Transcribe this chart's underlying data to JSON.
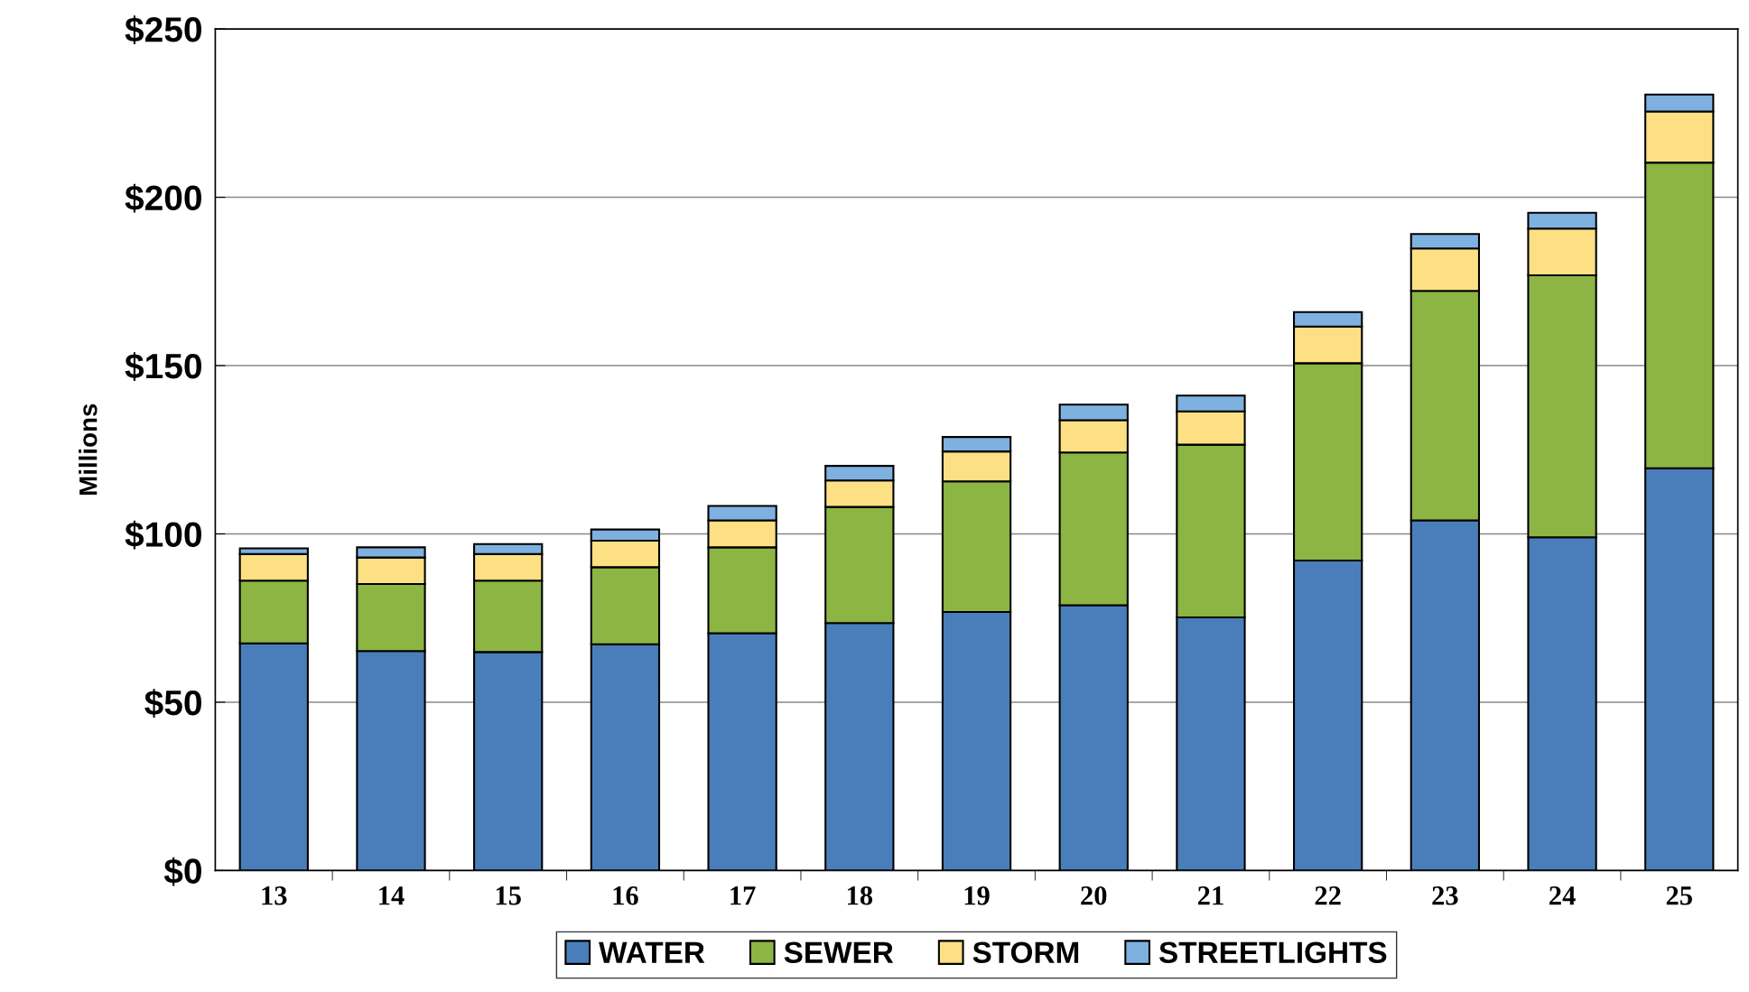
{
  "chart_data": {
    "type": "bar",
    "stacked": true,
    "ylabel": "Millions",
    "categories": [
      "13",
      "14",
      "15",
      "16",
      "17",
      "18",
      "19",
      "20",
      "21",
      "22",
      "23",
      "24",
      "25"
    ],
    "series": [
      {
        "name": "WATER",
        "color": "#4a7ebb",
        "values": [
          67.5,
          65.2,
          64.9,
          67.2,
          70.5,
          73.5,
          76.8,
          78.8,
          75.2,
          92.1,
          104.0,
          99.0,
          119.5
        ]
      },
      {
        "name": "SEWER",
        "color": "#8cb544",
        "values": [
          18.6,
          19.9,
          21.2,
          22.9,
          25.5,
          34.5,
          38.8,
          45.4,
          51.3,
          58.6,
          68.2,
          77.8,
          90.8
        ]
      },
      {
        "name": "STORM",
        "color": "#fde084",
        "values": [
          7.9,
          7.9,
          7.9,
          7.9,
          8.0,
          7.9,
          8.9,
          9.6,
          9.9,
          10.9,
          12.6,
          13.9,
          15.2
        ]
      },
      {
        "name": "STREETLIGHTS",
        "color": "#7fb1e0",
        "values": [
          1.7,
          3.0,
          3.0,
          3.3,
          4.3,
          4.3,
          4.3,
          4.6,
          4.7,
          4.3,
          4.3,
          4.7,
          5.0
        ]
      }
    ],
    "ylim": [
      0,
      250
    ],
    "yticks": [
      {
        "value": 0,
        "label": "$0"
      },
      {
        "value": 50,
        "label": "$50"
      },
      {
        "value": 100,
        "label": "$100"
      },
      {
        "value": 150,
        "label": "$150"
      },
      {
        "value": 200,
        "label": "$200"
      },
      {
        "value": 250,
        "label": "$250"
      }
    ],
    "grid": "y",
    "legend": "bottom"
  }
}
